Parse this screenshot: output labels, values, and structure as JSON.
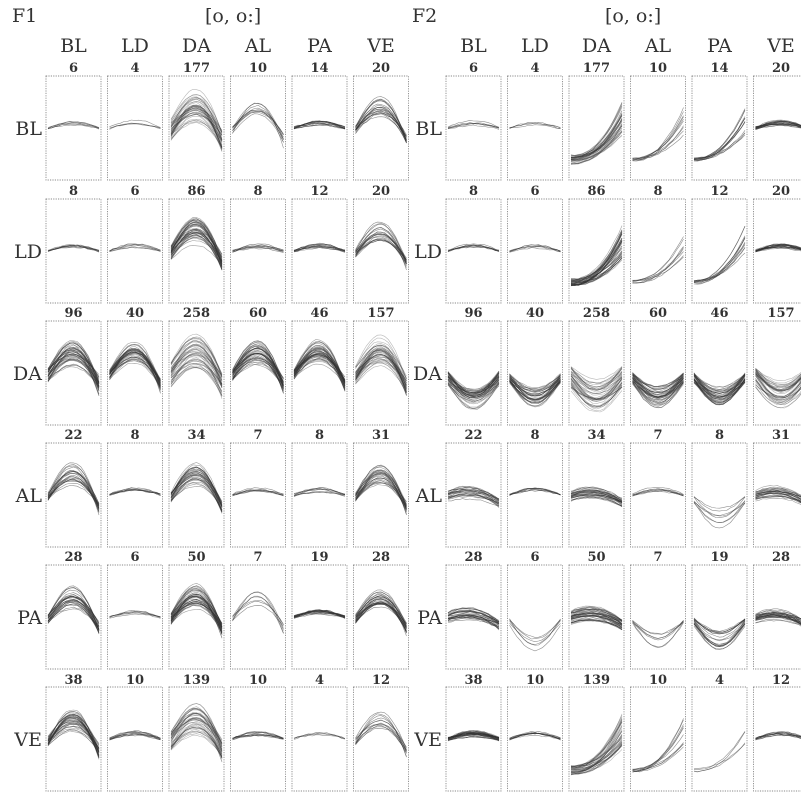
{
  "chart_data": {
    "type": "line",
    "vowel": "[o, o:]",
    "context_labels": [
      "BL",
      "LD",
      "DA",
      "AL",
      "PA",
      "VE"
    ],
    "panels": [
      {
        "name": "F1",
        "shapes": [
          [
            "flat",
            "flat",
            "hump",
            "hump",
            "flat",
            "hump"
          ],
          [
            "flat",
            "flat",
            "hump",
            "flat",
            "flat",
            "hump"
          ],
          [
            "hump",
            "hump",
            "hump",
            "hump",
            "hump",
            "hump"
          ],
          [
            "hump",
            "flat",
            "hump",
            "flat",
            "flat",
            "hump"
          ],
          [
            "hump",
            "flat",
            "hump",
            "hump",
            "flat",
            "hump"
          ],
          [
            "hump",
            "flat",
            "hump",
            "flat",
            "flat",
            "hump"
          ]
        ]
      },
      {
        "name": "F2",
        "shapes": [
          [
            "flat",
            "flat",
            "rise",
            "rise",
            "rise",
            "flat"
          ],
          [
            "flat",
            "flat",
            "rise",
            "rise",
            "rise",
            "flat"
          ],
          [
            "dip",
            "dip",
            "dip",
            "dip",
            "dip",
            "dip"
          ],
          [
            "fall",
            "flat",
            "fall",
            "flat",
            "dip",
            "fall"
          ],
          [
            "fall",
            "dip",
            "fall",
            "dip",
            "dip",
            "fall"
          ],
          [
            "flat",
            "flat",
            "rise",
            "rise",
            "rise",
            "flat"
          ]
        ]
      }
    ],
    "counts": [
      [
        6,
        4,
        177,
        10,
        14,
        20
      ],
      [
        8,
        6,
        86,
        8,
        12,
        20
      ],
      [
        96,
        40,
        258,
        60,
        46,
        157
      ],
      [
        22,
        8,
        34,
        7,
        8,
        31
      ],
      [
        28,
        6,
        50,
        7,
        19,
        28
      ],
      [
        38,
        10,
        139,
        10,
        4,
        12
      ]
    ]
  }
}
